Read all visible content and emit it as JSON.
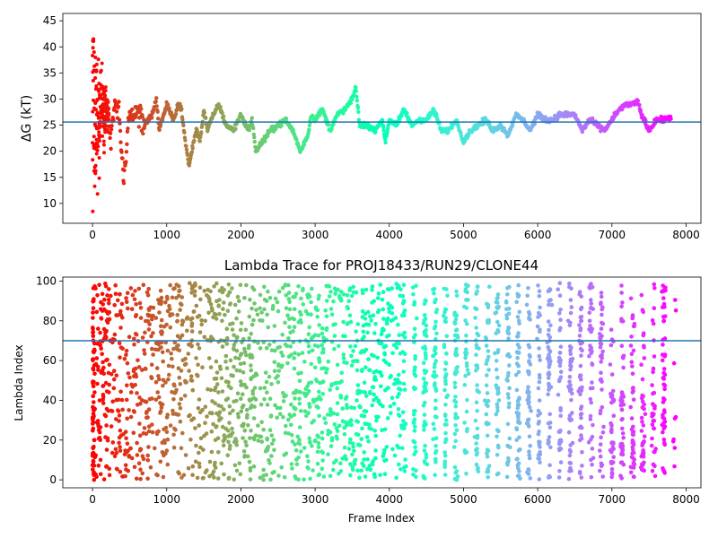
{
  "chart_data": [
    {
      "type": "scatter",
      "title": "",
      "xlabel": "",
      "ylabel": "ΔG (kT)",
      "xlim": [
        -400,
        8200
      ],
      "ylim": [
        6.2,
        46.4
      ],
      "x_ticks": [
        0,
        1000,
        2000,
        3000,
        4000,
        5000,
        6000,
        7000,
        8000
      ],
      "y_ticks": [
        10,
        15,
        20,
        25,
        30,
        35,
        40,
        45
      ],
      "hline": 25.6,
      "hline_color": "#1f77b4",
      "colormap": "rainbow (red at frame 0 → violet at frame ~7800)",
      "trace": {
        "x": [
          0,
          60,
          120,
          180,
          240,
          300,
          360,
          420,
          480,
          540,
          600,
          700,
          800,
          860,
          900,
          1000,
          1100,
          1150,
          1200,
          1250,
          1300,
          1350,
          1400,
          1450,
          1500,
          1550,
          1600,
          1700,
          1800,
          1900,
          2000,
          2100,
          2150,
          2200,
          2300,
          2400,
          2500,
          2600,
          2700,
          2800,
          2900,
          2950,
          3000,
          3100,
          3200,
          3300,
          3400,
          3500,
          3550,
          3600,
          3700,
          3800,
          3900,
          3950,
          4000,
          4100,
          4200,
          4300,
          4400,
          4500,
          4600,
          4700,
          4800,
          4900,
          5000,
          5100,
          5200,
          5300,
          5400,
          5500,
          5600,
          5700,
          5800,
          5900,
          6000,
          6100,
          6200,
          6300,
          6400,
          6500,
          6600,
          6700,
          6800,
          6900,
          7000,
          7100,
          7200,
          7300,
          7350,
          7400,
          7500,
          7600,
          7700,
          7780
        ],
        "y": [
          28,
          33,
          26,
          31,
          22,
          29,
          27,
          14,
          25,
          27,
          28,
          25,
          27,
          30,
          24,
          29,
          26,
          29,
          28,
          22,
          17,
          21,
          24,
          22,
          28,
          24,
          26,
          29,
          25,
          24,
          27,
          24,
          26,
          20,
          22,
          24,
          25,
          26,
          24,
          20,
          23,
          27,
          26,
          28,
          24,
          27,
          28,
          30,
          32,
          25,
          25,
          24,
          26,
          22,
          26,
          25,
          28,
          25,
          26,
          26,
          28,
          24,
          24,
          26,
          22,
          24,
          25,
          26,
          24,
          25,
          23,
          27,
          26,
          24,
          27,
          26,
          26,
          27,
          27,
          27,
          24,
          26,
          25,
          24,
          26,
          28,
          29,
          29,
          29.5,
          27,
          24,
          26,
          26,
          26.5
        ]
      }
    },
    {
      "type": "scatter",
      "title": "Lambda Trace for PROJ18433/RUN29/CLONE44",
      "xlabel": "Frame Index",
      "ylabel": "Lambda Index",
      "xlim": [
        -400,
        8200
      ],
      "ylim": [
        -4,
        102
      ],
      "x_ticks": [
        0,
        1000,
        2000,
        3000,
        4000,
        5000,
        6000,
        7000,
        8000
      ],
      "y_ticks": [
        0,
        20,
        40,
        60,
        80,
        100
      ],
      "hline": 70,
      "hline_color": "#1f77b4",
      "colormap": "rainbow (red at frame 0 → violet at frame ~7800)",
      "value_range": [
        0,
        99
      ],
      "frame_range": [
        0,
        7800
      ]
    }
  ]
}
